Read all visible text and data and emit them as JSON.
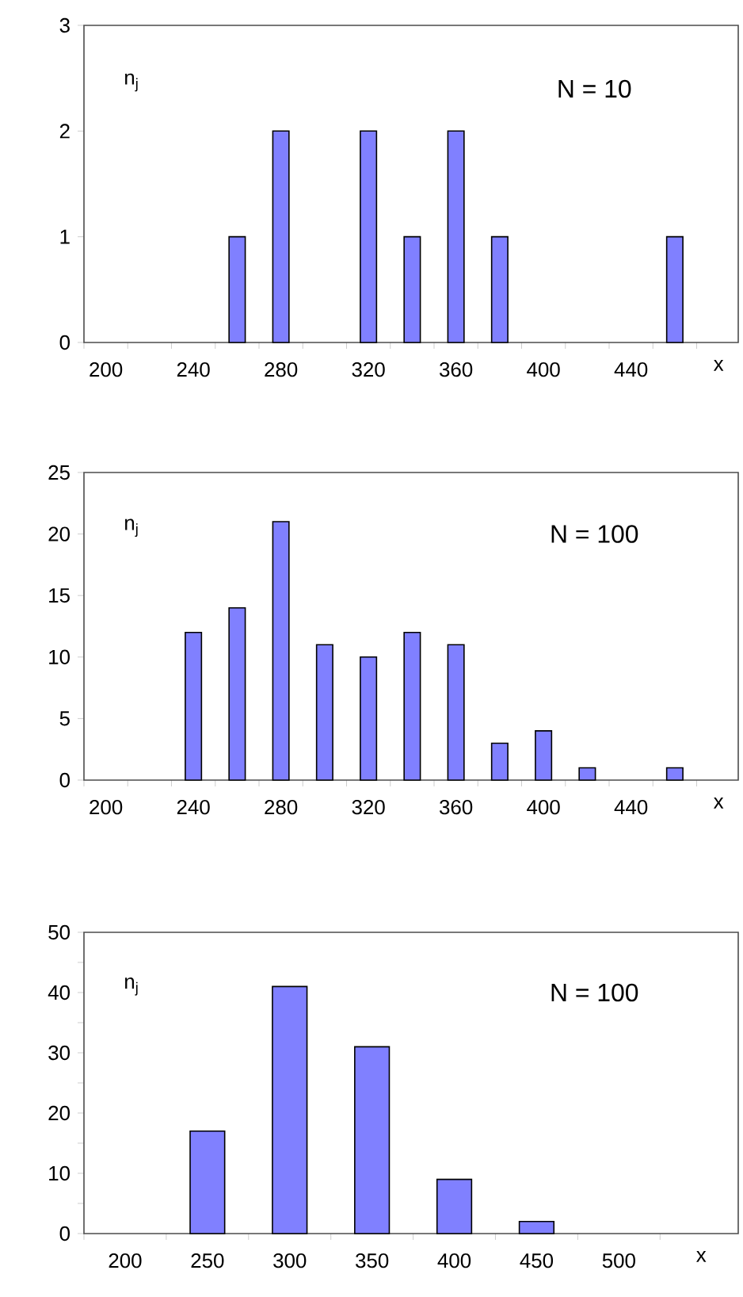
{
  "chart_data": [
    {
      "type": "bar",
      "categories": [
        "200",
        null,
        "240",
        null,
        "280",
        null,
        "320",
        null,
        "360",
        null,
        "400",
        null,
        "440",
        null
      ],
      "values": [
        null,
        null,
        null,
        1,
        2,
        null,
        2,
        1,
        2,
        1,
        null,
        null,
        null,
        1
      ],
      "color": "#8080ff",
      "ylim": [
        0,
        3
      ],
      "yticks": [
        0,
        1,
        2,
        3
      ],
      "xlabel": "x",
      "ylabel": "n$_{j}$",
      "annotations": [
        "N = 10"
      ]
    },
    {
      "type": "bar",
      "categories": [
        "200",
        null,
        "240",
        null,
        "280",
        null,
        "320",
        null,
        "360",
        null,
        "400",
        null,
        "440",
        null
      ],
      "values": [
        null,
        null,
        12,
        14,
        21,
        11,
        10,
        12,
        11,
        3,
        4,
        1,
        null,
        1
      ],
      "color": "#8080ff",
      "ylim": [
        0,
        25
      ],
      "yticks": [
        0,
        5,
        10,
        15,
        20,
        25
      ],
      "xlabel": "x",
      "ylabel": "n$_{j}$",
      "annotations": [
        "N = 100"
      ]
    },
    {
      "type": "bar",
      "categories": [
        "200",
        "250",
        "300",
        "350",
        "400",
        "450",
        "500"
      ],
      "values": [
        null,
        17,
        41,
        31,
        9,
        2,
        null
      ],
      "color": "#8080ff",
      "ylim": [
        0,
        50
      ],
      "yticks": [
        0,
        {
          "value": 5,
          "label": null
        },
        10,
        {
          "value": 15,
          "label": null
        },
        20,
        {
          "value": 25,
          "label": null
        },
        30,
        {
          "value": 35,
          "label": null
        },
        40,
        {
          "value": 45,
          "label": null
        },
        50
      ],
      "xlabel": "x",
      "ylabel": "n$_{j}$",
      "annotations": [
        "N = 100"
      ]
    }
  ]
}
